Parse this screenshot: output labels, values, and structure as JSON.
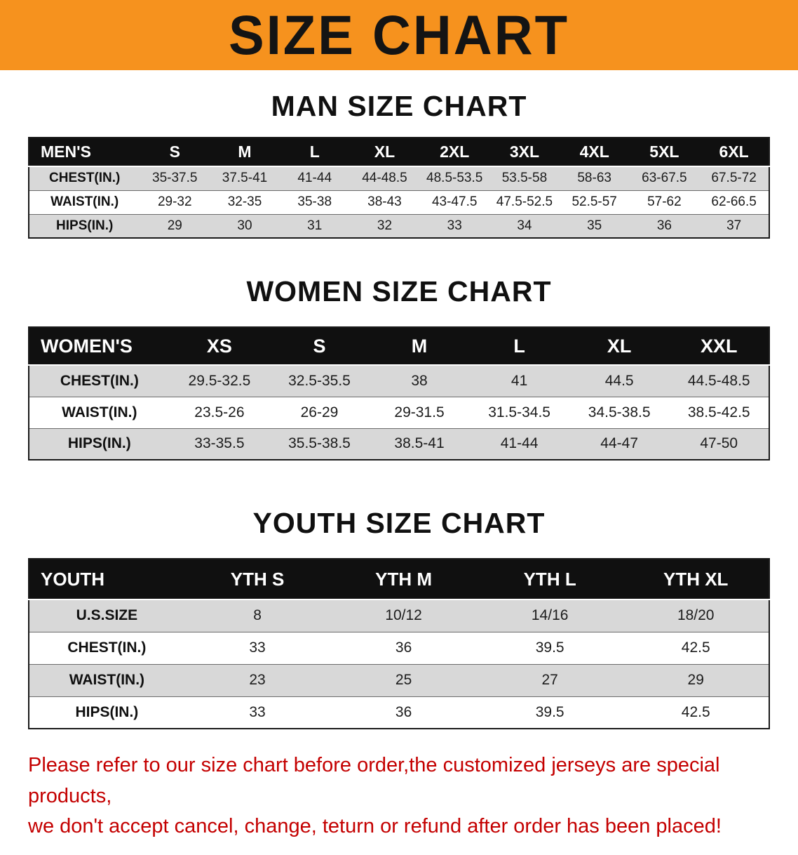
{
  "banner": {
    "title": "SIZE CHART",
    "bg_color": "#F6921E"
  },
  "sections": [
    {
      "id": "men",
      "heading": "MAN SIZE CHART",
      "table": {
        "header": [
          "MEN'S",
          "S",
          "M",
          "L",
          "XL",
          "2XL",
          "3XL",
          "4XL",
          "5XL",
          "6XL"
        ],
        "rows": [
          [
            "CHEST(IN.)",
            "35-37.5",
            "37.5-41",
            "41-44",
            "44-48.5",
            "48.5-53.5",
            "53.5-58",
            "58-63",
            "63-67.5",
            "67.5-72"
          ],
          [
            "WAIST(IN.)",
            "29-32",
            "32-35",
            "35-38",
            "38-43",
            "43-47.5",
            "47.5-52.5",
            "52.5-57",
            "57-62",
            "62-66.5"
          ],
          [
            "HIPS(IN.)",
            "29",
            "30",
            "31",
            "32",
            "33",
            "34",
            "35",
            "36",
            "37"
          ]
        ]
      }
    },
    {
      "id": "women",
      "heading": "WOMEN SIZE CHART",
      "table": {
        "header": [
          "WOMEN'S",
          "XS",
          "S",
          "M",
          "L",
          "XL",
          "XXL"
        ],
        "rows": [
          [
            "CHEST(IN.)",
            "29.5-32.5",
            "32.5-35.5",
            "38",
            "41",
            "44.5",
            "44.5-48.5"
          ],
          [
            "WAIST(IN.)",
            "23.5-26",
            "26-29",
            "29-31.5",
            "31.5-34.5",
            "34.5-38.5",
            "38.5-42.5"
          ],
          [
            "HIPS(IN.)",
            "33-35.5",
            "35.5-38.5",
            "38.5-41",
            "41-44",
            "44-47",
            "47-50"
          ]
        ]
      }
    },
    {
      "id": "youth",
      "heading": "YOUTH SIZE CHART",
      "table": {
        "header": [
          "YOUTH",
          "YTH S",
          "YTH M",
          "YTH L",
          "YTH XL"
        ],
        "rows": [
          [
            "U.S.SIZE",
            "8",
            "10/12",
            "14/16",
            "18/20"
          ],
          [
            "CHEST(IN.)",
            "33",
            "36",
            "39.5",
            "42.5"
          ],
          [
            "WAIST(IN.)",
            "23",
            "25",
            "27",
            "29"
          ],
          [
            "HIPS(IN.)",
            "33",
            "36",
            "39.5",
            "42.5"
          ]
        ]
      }
    }
  ],
  "footer": {
    "lines": [
      "Please refer to our size chart before order,the customized jerseys are special products,",
      "we don't accept cancel, change, teturn or refund after order has been placed!"
    ],
    "text_color": "#c40000"
  }
}
